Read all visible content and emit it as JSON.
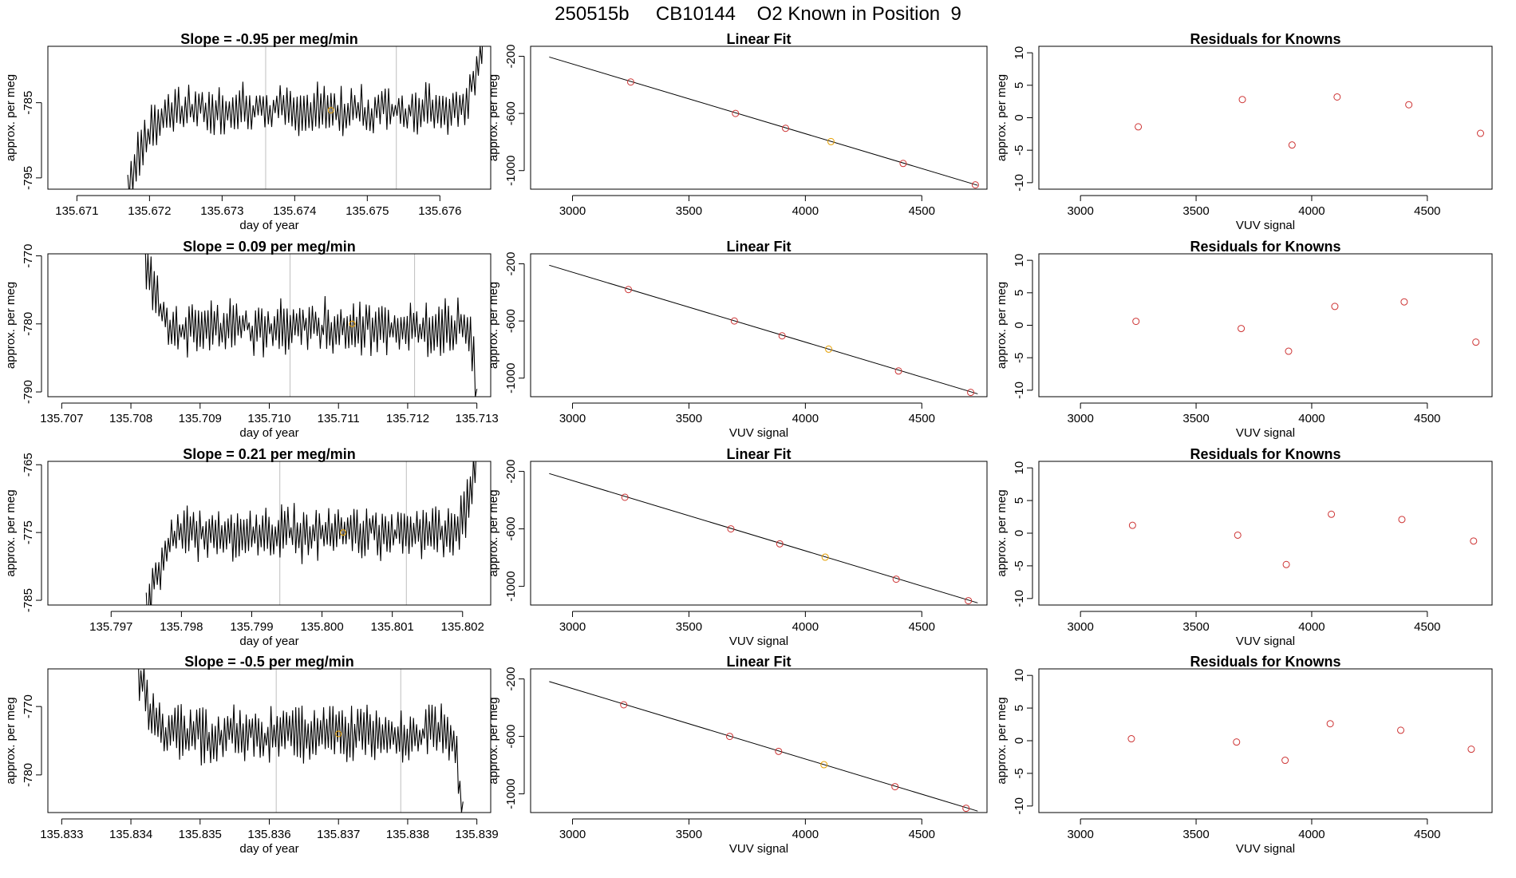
{
  "page_title": "250515b     CB10144    O2 Known in Position  9",
  "colors": {
    "trace": "#000000",
    "known_point": "#cd3333",
    "sample_point": "#e69f00",
    "range_line": "#bebebe",
    "fit_line": "#000000"
  },
  "chart_data": [
    {
      "row": 1,
      "type": "line",
      "title": "Slope =  -0.95  per meg/min",
      "xlabel": "day of year",
      "ylabel": "approx. per meg",
      "xlim": [
        135.6706,
        135.6767
      ],
      "ylim": [
        -796.5,
        -777.5
      ],
      "xticks": [
        "135.671",
        "135.672",
        "135.673",
        "135.674",
        "135.675",
        "135.676"
      ],
      "xtick_values": [
        135.671,
        135.672,
        135.673,
        135.674,
        135.675,
        135.676
      ],
      "yticks": [
        "-795",
        "-785"
      ],
      "ytick_values": [
        -795,
        -785
      ],
      "vlines": [
        135.6736,
        135.6754
      ],
      "sample_point": [
        135.6745,
        -786
      ],
      "trace": {
        "x_start": 135.6717,
        "x_end": 135.6766,
        "level": -786,
        "amplitude": 2.5,
        "rise_end": 135.6722,
        "tail_from": 135.6762,
        "start_value": -798,
        "end_value": -776
      }
    },
    {
      "row": 2,
      "type": "line",
      "title": "Slope =  0.09  per meg/min",
      "xlabel": "day of year",
      "ylabel": "approx. per meg",
      "xlim": [
        135.7068,
        135.7132
      ],
      "ylim": [
        -790.7,
        -769.7
      ],
      "xticks": [
        "135.707",
        "135.708",
        "135.709",
        "135.710",
        "135.711",
        "135.712",
        "135.713"
      ],
      "xtick_values": [
        135.707,
        135.708,
        135.709,
        135.71,
        135.711,
        135.712,
        135.713
      ],
      "yticks": [
        "-770",
        "-780",
        "-790"
      ],
      "ytick_values": [
        -770,
        -780,
        -790
      ],
      "vlines": [
        135.7103,
        135.7121
      ],
      "sample_point": [
        135.7112,
        -780
      ],
      "trace": {
        "x_start": 135.7082,
        "x_end": 135.713,
        "level": -780.5,
        "amplitude": 3,
        "rise_end": 135.7086,
        "tail_from": 135.71285,
        "start_value": -769,
        "end_value": -792
      }
    },
    {
      "row": 3,
      "type": "line",
      "title": "Slope =  0.21  per meg/min",
      "xlabel": "day of year",
      "ylabel": "approx. per meg",
      "xlim": [
        135.7961,
        135.8024
      ],
      "ylim": [
        -785.7,
        -764.5
      ],
      "xticks": [
        "135.797",
        "135.798",
        "135.799",
        "135.800",
        "135.801",
        "135.802"
      ],
      "xtick_values": [
        135.797,
        135.798,
        135.799,
        135.8,
        135.801,
        135.802
      ],
      "yticks": [
        "-765",
        "-775",
        "-785"
      ],
      "ytick_values": [
        -765,
        -775,
        -785
      ],
      "vlines": [
        135.7994,
        135.8012
      ],
      "sample_point": [
        135.8003,
        -775
      ],
      "trace": {
        "x_start": 135.7975,
        "x_end": 135.8022,
        "level": -775,
        "amplitude": 3,
        "rise_end": 135.7979,
        "tail_from": 135.8019,
        "start_value": -788,
        "end_value": -763
      }
    },
    {
      "row": 4,
      "type": "line",
      "title": "Slope =  -0.5  per meg/min",
      "xlabel": "day of year",
      "ylabel": "approx. per meg",
      "xlim": [
        135.8328,
        135.8392
      ],
      "ylim": [
        -785.5,
        -764.5
      ],
      "xticks": [
        "135.833",
        "135.834",
        "135.835",
        "135.836",
        "135.837",
        "135.838",
        "135.839"
      ],
      "xtick_values": [
        135.833,
        135.834,
        135.835,
        135.836,
        135.837,
        135.838,
        135.839
      ],
      "yticks": [
        "-770",
        "-780"
      ],
      "ytick_values": [
        -770,
        -780
      ],
      "vlines": [
        135.8361,
        135.8379
      ],
      "sample_point": [
        135.837,
        -774
      ],
      "trace": {
        "x_start": 135.8341,
        "x_end": 135.8388,
        "level": -774,
        "amplitude": 3,
        "rise_end": 135.8345,
        "tail_from": 135.8386,
        "start_value": -764,
        "end_value": -787
      }
    },
    {
      "row": 1,
      "type": "scatter",
      "title": "Linear Fit",
      "xlabel": "",
      "ylabel": "approx. per meg",
      "xlim": [
        2820,
        4780
      ],
      "ylim": [
        -1130,
        -130
      ],
      "xticks": [
        "3000",
        "3500",
        "4000",
        "4500"
      ],
      "xtick_values": [
        3000,
        3500,
        4000,
        4500
      ],
      "yticks": [
        "-200",
        "-600",
        "-1000"
      ],
      "ytick_values": [
        -200,
        -600,
        -1000
      ],
      "fit_line": {
        "x": [
          2900,
          4740
        ],
        "y": [
          -205,
          -1103
        ]
      },
      "points": {
        "x": [
          3250,
          3700,
          3915,
          4110,
          4420,
          4730
        ],
        "y": [
          -380,
          -600,
          -704,
          -797,
          -950,
          -1100
        ]
      },
      "sample_index": 3
    },
    {
      "row": 2,
      "type": "scatter",
      "title": "Linear Fit",
      "xlabel": "VUV signal",
      "ylabel": "approx. per meg",
      "xlim": [
        2820,
        4780
      ],
      "ylim": [
        -1130,
        -130
      ],
      "xticks": [
        "3000",
        "3500",
        "4000",
        "4500"
      ],
      "xtick_values": [
        3000,
        3500,
        4000,
        4500
      ],
      "yticks": [
        "-200",
        "-600",
        "-1000"
      ],
      "ytick_values": [
        -200,
        -600,
        -1000
      ],
      "fit_line": {
        "x": [
          2900,
          4740
        ],
        "y": [
          -210,
          -1110
        ]
      },
      "points": {
        "x": [
          3240,
          3695,
          3900,
          4100,
          4400,
          4710
        ],
        "y": [
          -380,
          -600,
          -704,
          -797,
          -950,
          -1100
        ]
      },
      "sample_index": 3
    },
    {
      "row": 3,
      "type": "scatter",
      "title": "Linear Fit",
      "xlabel": "VUV signal",
      "ylabel": "approx. per meg",
      "xlim": [
        2820,
        4780
      ],
      "ylim": [
        -1130,
        -130
      ],
      "xticks": [
        "3000",
        "3500",
        "4000",
        "4500"
      ],
      "xtick_values": [
        3000,
        3500,
        4000,
        4500
      ],
      "yticks": [
        "-200",
        "-600",
        "-1000"
      ],
      "ytick_values": [
        -200,
        -600,
        -1000
      ],
      "fit_line": {
        "x": [
          2900,
          4740
        ],
        "y": [
          -215,
          -1115
        ]
      },
      "points": {
        "x": [
          3225,
          3680,
          3890,
          4085,
          4390,
          4700
        ],
        "y": [
          -380,
          -600,
          -704,
          -797,
          -950,
          -1100
        ]
      },
      "sample_index": 3
    },
    {
      "row": 4,
      "type": "scatter",
      "title": "Linear Fit",
      "xlabel": "VUV signal",
      "ylabel": "approx. per meg",
      "xlim": [
        2820,
        4780
      ],
      "ylim": [
        -1130,
        -130
      ],
      "xticks": [
        "3000",
        "3500",
        "4000",
        "4500"
      ],
      "xtick_values": [
        3000,
        3500,
        4000,
        4500
      ],
      "yticks": [
        "-200",
        "-600",
        "-1000"
      ],
      "ytick_values": [
        -200,
        -600,
        -1000
      ],
      "fit_line": {
        "x": [
          2900,
          4740
        ],
        "y": [
          -218,
          -1120
        ]
      },
      "points": {
        "x": [
          3220,
          3675,
          3885,
          4080,
          4385,
          4690
        ],
        "y": [
          -380,
          -600,
          -704,
          -797,
          -950,
          -1100
        ]
      },
      "sample_index": 3
    },
    {
      "row": 1,
      "type": "scatter",
      "title": "Residuals for Knowns",
      "xlabel": "VUV signal",
      "ylabel": "approx. per meg",
      "xlim": [
        2820,
        4780
      ],
      "ylim": [
        -11,
        11
      ],
      "xticks": [
        "3000",
        "3500",
        "4000",
        "4500"
      ],
      "xtick_values": [
        3000,
        3500,
        4000,
        4500
      ],
      "yticks": [
        "10",
        "5",
        "0",
        "-5",
        "-10"
      ],
      "ytick_values": [
        10,
        5,
        0,
        -5,
        -10
      ],
      "points": {
        "x": [
          3250,
          3700,
          3915,
          4110,
          4420,
          4730
        ],
        "y": [
          -1.4,
          2.8,
          -4.2,
          3.2,
          2.0,
          -2.4
        ]
      }
    },
    {
      "row": 2,
      "type": "scatter",
      "title": "Residuals for Knowns",
      "xlabel": "VUV signal",
      "ylabel": "approx. per meg",
      "xlim": [
        2820,
        4780
      ],
      "ylim": [
        -11,
        11
      ],
      "xticks": [
        "3000",
        "3500",
        "4000",
        "4500"
      ],
      "xtick_values": [
        3000,
        3500,
        4000,
        4500
      ],
      "yticks": [
        "10",
        "5",
        "0",
        "-5",
        "-10"
      ],
      "ytick_values": [
        10,
        5,
        0,
        -5,
        -10
      ],
      "points": {
        "x": [
          3240,
          3695,
          3900,
          4100,
          4400,
          4710
        ],
        "y": [
          0.6,
          -0.5,
          -4.0,
          2.9,
          3.6,
          -2.6
        ]
      }
    },
    {
      "row": 3,
      "type": "scatter",
      "title": "Residuals for Knowns",
      "xlabel": "VUV signal",
      "ylabel": "approx. per meg",
      "xlim": [
        2820,
        4780
      ],
      "ylim": [
        -11,
        11
      ],
      "xticks": [
        "3000",
        "3500",
        "4000",
        "4500"
      ],
      "xtick_values": [
        3000,
        3500,
        4000,
        4500
      ],
      "yticks": [
        "10",
        "5",
        "0",
        "-5",
        "-10"
      ],
      "ytick_values": [
        10,
        5,
        0,
        -5,
        -10
      ],
      "points": {
        "x": [
          3225,
          3680,
          3890,
          4085,
          4390,
          4700
        ],
        "y": [
          1.2,
          -0.3,
          -4.8,
          2.9,
          2.1,
          -1.2
        ]
      }
    },
    {
      "row": 4,
      "type": "scatter",
      "title": "Residuals for Knowns",
      "xlabel": "VUV signal",
      "ylabel": "approx. per meg",
      "xlim": [
        2820,
        4780
      ],
      "ylim": [
        -11,
        11
      ],
      "xticks": [
        "3000",
        "3500",
        "4000",
        "4500"
      ],
      "xtick_values": [
        3000,
        3500,
        4000,
        4500
      ],
      "yticks": [
        "10",
        "5",
        "0",
        "-5",
        "-10"
      ],
      "ytick_values": [
        10,
        5,
        0,
        -5,
        -10
      ],
      "points": {
        "x": [
          3220,
          3675,
          3885,
          4080,
          4385,
          4690
        ],
        "y": [
          0.3,
          -0.2,
          -3.0,
          2.6,
          1.6,
          -1.3
        ]
      }
    }
  ]
}
